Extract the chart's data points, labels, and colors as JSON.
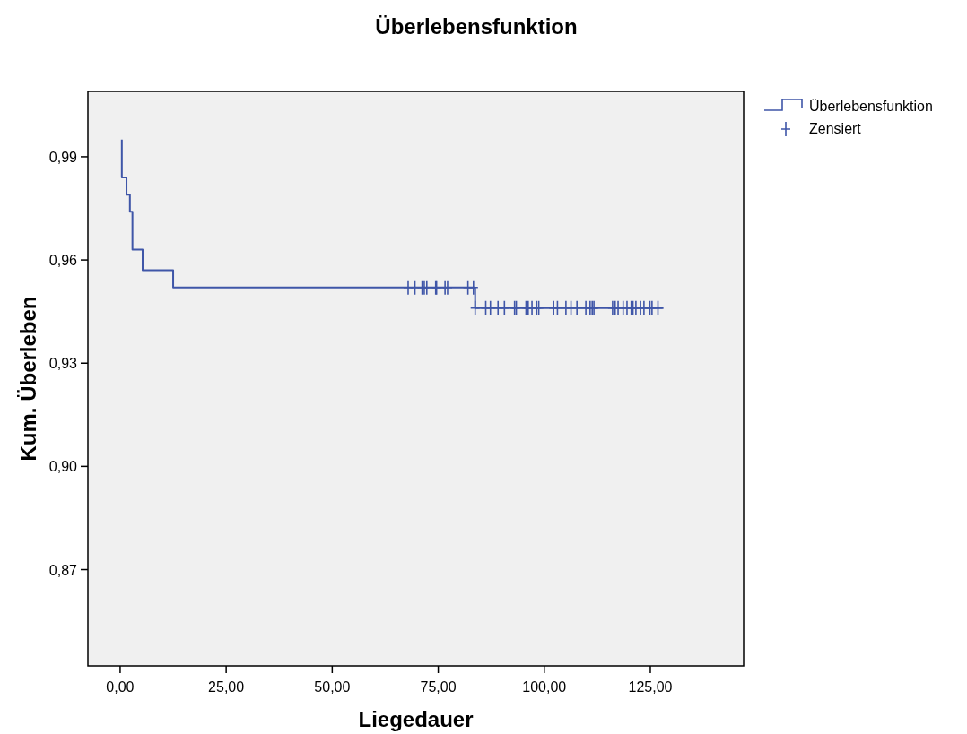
{
  "chart_data": {
    "type": "step",
    "title": "Überlebensfunktion",
    "xlabel": "Liegedauer",
    "ylabel": "Kum. Überleben",
    "xlim": [
      -7.6,
      147
    ],
    "ylim": [
      0.842,
      1.009
    ],
    "xticks": [
      {
        "value": 0,
        "label": "0,00"
      },
      {
        "value": 25,
        "label": "25,00"
      },
      {
        "value": 50,
        "label": "50,00"
      },
      {
        "value": 75,
        "label": "75,00"
      },
      {
        "value": 100,
        "label": "100,00"
      },
      {
        "value": 125,
        "label": "125,00"
      }
    ],
    "yticks": [
      {
        "value": 0.87,
        "label": "0,87"
      },
      {
        "value": 0.9,
        "label": "0,90"
      },
      {
        "value": 0.93,
        "label": "0,93"
      },
      {
        "value": 0.96,
        "label": "0,96"
      },
      {
        "value": 0.99,
        "label": "0,99"
      }
    ],
    "grid": false,
    "legend": "top right",
    "series": [
      {
        "name": "Überlebensfunktion",
        "color": "#3f56a8",
        "marker": "none",
        "x": [
          0.4,
          0.4,
          1.5,
          2.3,
          2.9,
          5.3,
          12.5,
          83.7,
          128.1
        ],
        "values": [
          0.995,
          0.984,
          0.979,
          0.974,
          0.963,
          0.957,
          0.952,
          0.946,
          0.946
        ]
      },
      {
        "name": "Zensiert",
        "type": "scatter",
        "color": "#3f56a8",
        "marker": "cross",
        "x": [
          67.9,
          69.5,
          71.2,
          71.7,
          72.3,
          74.4,
          74.6,
          76.6,
          77.2,
          82.0,
          83.3,
          83.7,
          86.2,
          87.3,
          89.1,
          90.6,
          93.0,
          93.4,
          95.7,
          96.2,
          97.1,
          98.2,
          98.7,
          102.2,
          103.1,
          105.1,
          106.3,
          107.7,
          109.8,
          110.8,
          111.3,
          111.7,
          116.1,
          116.7,
          117.4,
          118.6,
          119.5,
          120.5,
          120.9,
          121.6,
          122.7,
          123.5,
          124.9,
          125.4,
          126.8
        ],
        "values": [
          0.952,
          0.952,
          0.952,
          0.952,
          0.952,
          0.952,
          0.952,
          0.952,
          0.952,
          0.952,
          0.952,
          0.946,
          0.946,
          0.946,
          0.946,
          0.946,
          0.946,
          0.946,
          0.946,
          0.946,
          0.946,
          0.946,
          0.946,
          0.946,
          0.946,
          0.946,
          0.946,
          0.946,
          0.946,
          0.946,
          0.946,
          0.946,
          0.946,
          0.946,
          0.946,
          0.946,
          0.946,
          0.946,
          0.946,
          0.946,
          0.946,
          0.946,
          0.946,
          0.946,
          0.946
        ]
      }
    ]
  }
}
